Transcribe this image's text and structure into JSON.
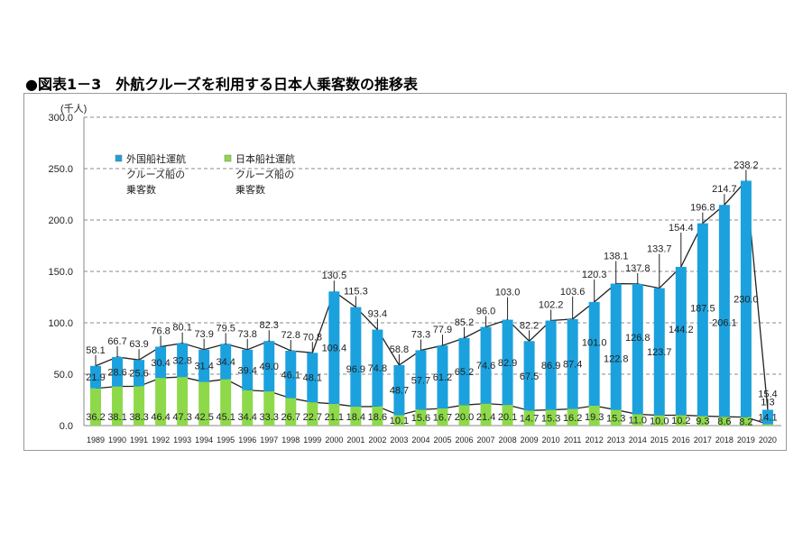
{
  "title": "●図表1－3　外航クルーズを利用する日本人乗客数の推移表",
  "chart_data": {
    "type": "bar",
    "stacked": true,
    "title": "●図表1－3　外航クルーズを利用する日本人乗客数の推移表",
    "ylabel": "(千人)",
    "xlabel": "",
    "ylim": [
      0,
      300
    ],
    "yticks": [
      "0.0",
      "50.0",
      "100.0",
      "150.0",
      "200.0",
      "250.0",
      "300.0"
    ],
    "grid": true,
    "legend_position": "top-left",
    "categories": [
      "1989",
      "1990",
      "1991",
      "1992",
      "1993",
      "1994",
      "1995",
      "1996",
      "1997",
      "1998",
      "1999",
      "2000",
      "2001",
      "2002",
      "2003",
      "2004",
      "2005",
      "2006",
      "2007",
      "2008",
      "2009",
      "2010",
      "2011",
      "2012",
      "2013",
      "2014",
      "2015",
      "2016",
      "2017",
      "2018",
      "2019",
      "2020"
    ],
    "series": [
      {
        "name": "日本船社運航クルーズ船の乗客数",
        "legend_lines": [
          "日本船社運航",
          "クルーズ船の",
          "乗客数"
        ],
        "color": "#8ed94a",
        "values": [
          36.2,
          38.1,
          38.3,
          46.4,
          47.3,
          42.5,
          45.1,
          34.4,
          33.3,
          26.7,
          22.7,
          21.1,
          18.4,
          18.6,
          10.1,
          15.6,
          16.7,
          20.0,
          21.4,
          20.1,
          14.7,
          15.3,
          16.2,
          19.3,
          15.3,
          11.0,
          10.0,
          10.2,
          9.3,
          8.6,
          8.2,
          1.3
        ]
      },
      {
        "name": "外国船社運航クルーズ船の乗客数",
        "legend_lines": [
          "外国船社運航",
          "クルーズ船の",
          "乗客数"
        ],
        "color": "#1ba1dd",
        "values": [
          21.9,
          28.6,
          25.6,
          30.4,
          32.8,
          31.4,
          34.4,
          39.4,
          49.0,
          46.1,
          48.1,
          109.4,
          96.9,
          74.8,
          48.7,
          57.7,
          61.2,
          65.2,
          74.6,
          82.9,
          67.5,
          86.9,
          87.4,
          101.0,
          122.8,
          126.8,
          123.7,
          144.2,
          187.5,
          206.1,
          230.0,
          14.1
        ]
      }
    ],
    "totals": [
      58.1,
      66.7,
      63.9,
      76.8,
      80.1,
      73.9,
      79.5,
      73.8,
      82.3,
      72.8,
      70.8,
      130.5,
      115.3,
      93.4,
      58.8,
      73.3,
      77.9,
      85.2,
      96.0,
      103.0,
      82.2,
      102.2,
      103.6,
      120.3,
      138.1,
      137.8,
      133.7,
      154.4,
      196.8,
      214.7,
      238.2,
      15.4
    ]
  }
}
